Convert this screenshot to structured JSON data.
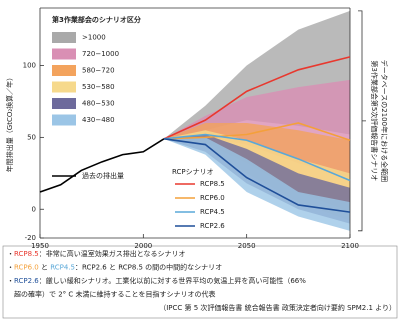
{
  "chart_data": {
    "type": "scenario-range",
    "y_label": "年間排出量（GtCO₂換算／年）",
    "xlim": [
      1950,
      2100
    ],
    "xticks": [
      1950,
      2000,
      2050,
      2100
    ],
    "ylim": [
      -20,
      140
    ],
    "yticks": [
      -20,
      0,
      50,
      100
    ],
    "band_legend_title": "第3作業部会のシナリオ区分",
    "historical": {
      "name": "過去の排出量",
      "color": "#000000",
      "x": [
        1950,
        1960,
        1970,
        1980,
        1990,
        2000,
        2010
      ],
      "values": [
        12,
        17,
        27,
        33,
        38,
        40,
        49
      ]
    },
    "scenario_x": [
      2010,
      2030,
      2050,
      2075,
      2100
    ],
    "bands": [
      {
        "name": ">1000",
        "color": "#a9a9a9",
        "lower": [
          49,
          55,
          62,
          58,
          52
        ],
        "upper": [
          49,
          72,
          100,
          125,
          138
        ]
      },
      {
        "name": "720−1000",
        "color": "#d98fb4",
        "lower": [
          49,
          50,
          45,
          32,
          22
        ],
        "upper": [
          49,
          65,
          78,
          85,
          90
        ]
      },
      {
        "name": "580−720",
        "color": "#f3a35d",
        "lower": [
          49,
          46,
          32,
          12,
          -2
        ],
        "upper": [
          49,
          60,
          60,
          55,
          48
        ]
      },
      {
        "name": "530−580",
        "color": "#f6d98c",
        "lower": [
          49,
          44,
          25,
          5,
          -8
        ],
        "upper": [
          49,
          55,
          48,
          35,
          25
        ]
      },
      {
        "name": "480−530",
        "color": "#6d6a9c",
        "lower": [
          49,
          40,
          18,
          0,
          -10
        ],
        "upper": [
          49,
          52,
          42,
          25,
          15
        ]
      },
      {
        "name": "430−480",
        "color": "#9bc5e6",
        "lower": [
          49,
          38,
          12,
          -5,
          -15
        ],
        "upper": [
          49,
          50,
          35,
          12,
          5
        ]
      }
    ],
    "series_legend_title": "RCPシナリオ",
    "series": [
      {
        "name": "RCP8.5",
        "color": "#e8382e",
        "values": [
          49,
          62,
          82,
          97,
          106
        ]
      },
      {
        "name": "RCP6.0",
        "color": "#f4a03a",
        "values": [
          49,
          50,
          52,
          60,
          48
        ]
      },
      {
        "name": "RCP4.5",
        "color": "#5aa8d8",
        "values": [
          49,
          52,
          48,
          35,
          20
        ]
      },
      {
        "name": "RCP2.6",
        "color": "#1f4f99",
        "values": [
          49,
          45,
          22,
          3,
          -2
        ]
      }
    ],
    "range_label": [
      "第3作業部会第5次評価報告書シナリオ",
      "データベースの2100年における全範囲"
    ],
    "notes": [
      [
        "・",
        "RCP8.5",
        "：非常に高い温室効果ガス排出となるシナリオ"
      ],
      [
        "・",
        "RCP6.0",
        " と ",
        "RCP4.5",
        "：RCP2.6 と RCP8.5 の間の中間的なシナリオ"
      ],
      [
        "・",
        "RCP2.6",
        "：厳しい緩和シナリオ。工業化以前に対する世界平均の気温上昇を高い可能性（66%"
      ],
      [
        "　超の確率）で 2° C 未満に維持することを目指すシナリオの代表"
      ],
      [
        "（IPCC 第 5 次評価報告書 統合報告書 政策決定者向け要約 SPM2.1 より）"
      ]
    ]
  }
}
